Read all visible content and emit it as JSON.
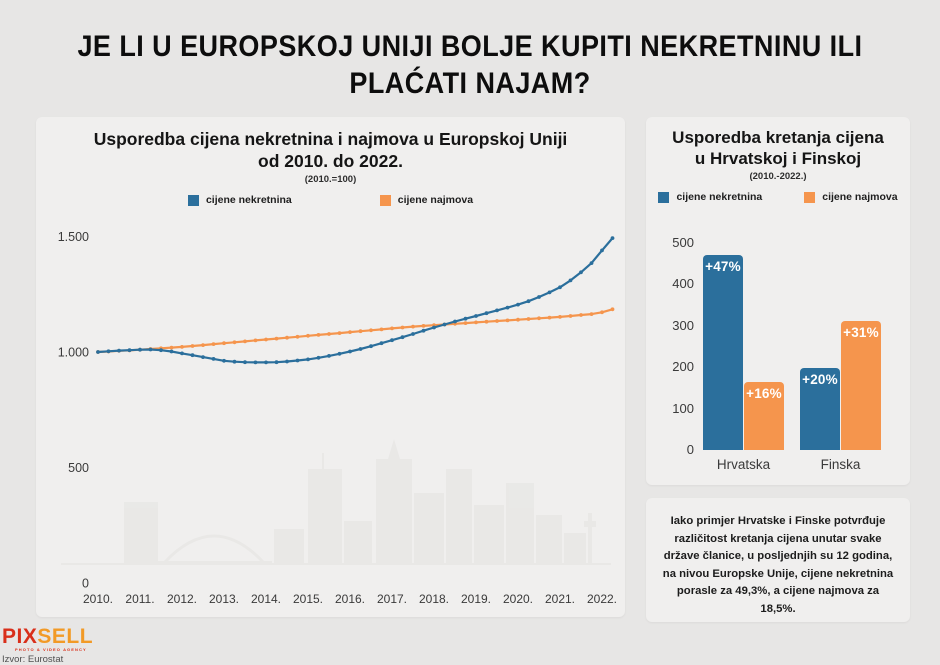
{
  "title": {
    "line1": "JE LI U EUROPSKOJ UNIJI BOLJE KUPITI NEKRETNINU ILI",
    "line2": "PLAĆATI NAJAM?"
  },
  "colors": {
    "property_blue": "#2B6F9C",
    "rent_orange": "#F5954D",
    "page_background": "#E7E6E5",
    "panel_background": "#F0EFEE"
  },
  "chart_data": [
    {
      "type": "line",
      "title_line1": "Usporedba cijena nekretnina i najmova u Europskoj Uniji",
      "title_line2": "od 2010. do 2022.",
      "subtitle": "(2010.=100)",
      "x_tick_labels": [
        "2010.",
        "2011.",
        "2012.",
        "2013.",
        "2014.",
        "2015.",
        "2016.",
        "2017.",
        "2018.",
        "2019.",
        "2020.",
        "2021.",
        "2022."
      ],
      "y_ticks": [
        {
          "label": "1.500",
          "value": 1500
        },
        {
          "label": "1.000",
          "value": 1000
        },
        {
          "label": "500",
          "value": 500
        },
        {
          "label": "0",
          "value": 0
        }
      ],
      "ylim": [
        0,
        1550
      ],
      "x_note": "quarterly points 2010Q1-2022Q2, index 2010=100 (shown x10)",
      "grid": false,
      "legend_position": "top",
      "series": [
        {
          "name": "cijene nekretnina",
          "color": "#2B6F9C",
          "values": [
            1000,
            1003,
            1006,
            1008,
            1010,
            1011,
            1008,
            1002,
            994,
            986,
            978,
            970,
            962,
            958,
            956,
            955,
            955,
            956,
            959,
            963,
            968,
            975,
            983,
            992,
            1002,
            1013,
            1025,
            1038,
            1051,
            1064,
            1078,
            1092,
            1106,
            1119,
            1132,
            1144,
            1156,
            1168,
            1180,
            1192,
            1205,
            1220,
            1238,
            1258,
            1280,
            1310,
            1345,
            1385,
            1440,
            1493
          ]
        },
        {
          "name": "cijene najmova",
          "color": "#F5954D",
          "values": [
            1000,
            1002,
            1005,
            1007,
            1010,
            1013,
            1016,
            1019,
            1022,
            1026,
            1030,
            1034,
            1038,
            1042,
            1046,
            1050,
            1054,
            1058,
            1062,
            1066,
            1070,
            1074,
            1078,
            1082,
            1086,
            1090,
            1094,
            1098,
            1102,
            1106,
            1110,
            1113,
            1116,
            1119,
            1122,
            1125,
            1128,
            1131,
            1134,
            1137,
            1140,
            1143,
            1146,
            1149,
            1152,
            1156,
            1160,
            1164,
            1172,
            1185
          ]
        }
      ]
    },
    {
      "type": "bar",
      "title_line1": "Usporedba kretanja cijena",
      "title_line2": "u Hrvatskoj i Finskoj",
      "subtitle": "(2010.-2022.)",
      "categories": [
        "Hrvatska",
        "Finska"
      ],
      "y_ticks": [
        {
          "label": "500",
          "value": 500
        },
        {
          "label": "400",
          "value": 400
        },
        {
          "label": "300",
          "value": 300
        },
        {
          "label": "200",
          "value": 200
        },
        {
          "label": "100",
          "value": 100
        },
        {
          "label": "0",
          "value": 0
        }
      ],
      "ylim": [
        0,
        500
      ],
      "grid": false,
      "legend_position": "top",
      "series": [
        {
          "name": "cijene nekretnina",
          "color": "#2B6F9C",
          "values": [
            470,
            198
          ],
          "bar_labels": [
            "+47%",
            "+20%"
          ]
        },
        {
          "name": "cijene najmova",
          "color": "#F5954D",
          "values": [
            164,
            312
          ],
          "bar_labels": [
            "+16%",
            "+31%"
          ]
        }
      ]
    }
  ],
  "note": {
    "text": "Iako primjer Hrvatske i Finske potvrđuje različitost kretanja cijena unutar svake države članice, u posljednjih su 12 godina, na nivou Europske Unije, cijene nekretnina porasle za 49,3%, a cijene najmova za 18,5%."
  },
  "footer": {
    "logo_part1": "PIX",
    "logo_part2": "SELL",
    "logo_tagline": "PHOTO & VIDEO AGENCY",
    "source": "Izvor: Eurostat"
  }
}
